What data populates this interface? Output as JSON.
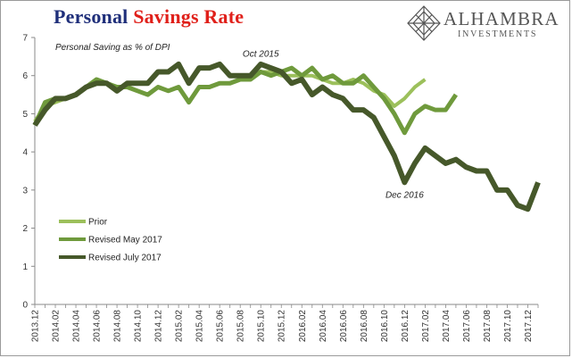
{
  "title": {
    "part1": "Personal",
    "part2": "Savings Rate"
  },
  "logo": {
    "word": "ALHAMBRA",
    "sub": "INVESTMENTS",
    "icon": "alhambra-diamond-logo"
  },
  "colors": {
    "title_blue": "#1f2f7a",
    "title_red": "#e0201a",
    "prior": "#9cc05b",
    "revised_may": "#6f9a3c",
    "revised_july": "#46582a",
    "axis": "#8a8a8a"
  },
  "chart_data": {
    "type": "line",
    "ylabel": "Personal Saving as % of DPI",
    "ylim": [
      0,
      7
    ],
    "yticks": [
      0,
      1,
      2,
      3,
      4,
      5,
      6,
      7
    ],
    "x_tick_labels": [
      "2013.12",
      "2014.02",
      "2014.04",
      "2014.06",
      "2014.08",
      "2014.10",
      "2014.12",
      "2015.02",
      "2015.04",
      "2015.06",
      "2015.08",
      "2015.10",
      "2015.12",
      "2016.02",
      "2016.04",
      "2016.06",
      "2016.08",
      "2016.10",
      "2016.12",
      "2017.02",
      "2017.04",
      "2017.06",
      "2017.08",
      "2017.10",
      "2017.12"
    ],
    "x_start": "2013.12",
    "x_end": "2018.01",
    "legend": "lower-left",
    "grid": false,
    "series": [
      {
        "name": "Prior",
        "key": "prior",
        "start": "2013.12",
        "values": [
          4.8,
          5.2,
          5.3,
          5.4,
          5.5,
          5.7,
          5.9,
          5.8,
          5.7,
          5.7,
          5.6,
          5.5,
          5.7,
          5.6,
          5.7,
          5.3,
          5.7,
          5.7,
          5.8,
          5.8,
          5.9,
          5.9,
          6.1,
          6.1,
          6.0,
          6.0,
          6.0,
          6.0,
          5.9,
          5.8,
          5.8,
          5.9,
          5.8,
          5.6,
          5.5,
          5.2,
          5.4,
          5.7,
          5.9
        ]
      },
      {
        "name": "Revised May 2017",
        "key": "revised_may",
        "start": "2013.12",
        "values": [
          4.7,
          5.3,
          5.4,
          5.4,
          5.5,
          5.7,
          5.9,
          5.8,
          5.7,
          5.7,
          5.6,
          5.5,
          5.7,
          5.6,
          5.7,
          5.3,
          5.7,
          5.7,
          5.8,
          5.8,
          5.9,
          5.9,
          6.1,
          6.0,
          6.1,
          6.2,
          6.0,
          6.2,
          5.9,
          6.0,
          5.8,
          5.8,
          6.0,
          5.7,
          5.4,
          5.0,
          4.5,
          5.0,
          5.2,
          5.1,
          5.1,
          5.5
        ]
      },
      {
        "name": "Revised July 2017",
        "key": "revised_july",
        "start": "2013.12",
        "values": [
          4.7,
          5.1,
          5.4,
          5.4,
          5.5,
          5.7,
          5.8,
          5.8,
          5.6,
          5.8,
          5.8,
          5.8,
          6.1,
          6.1,
          6.3,
          5.8,
          6.2,
          6.2,
          6.3,
          6.0,
          6.0,
          6.0,
          6.3,
          6.2,
          6.1,
          5.8,
          5.9,
          5.5,
          5.7,
          5.5,
          5.4,
          5.1,
          5.1,
          4.9,
          4.4,
          3.9,
          3.2,
          3.7,
          4.1,
          3.9,
          3.7,
          3.8,
          3.6,
          3.5,
          3.5,
          3.0,
          3.0,
          2.6,
          2.5,
          3.2
        ]
      }
    ],
    "annotations": [
      {
        "text": "Oct 2015",
        "x": "2015.10",
        "y": 6.5
      },
      {
        "text": "Dec 2016",
        "x": "2016.12",
        "y": 2.8
      }
    ]
  }
}
